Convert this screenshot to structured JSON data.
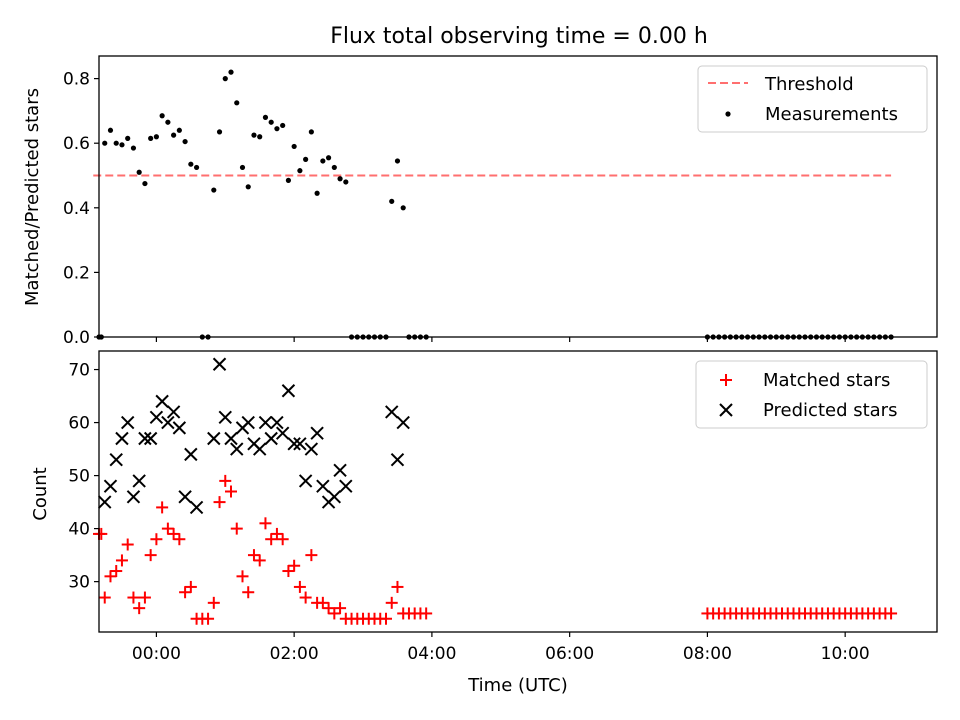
{
  "title": "Flux total observing time = 0.00 h",
  "chart_data": [
    {
      "type": "scatter",
      "ylabel": "Matched/Predicted stars",
      "xlabel": "",
      "xlim": [
        "-00:50",
        "11:20"
      ],
      "ylim": [
        0,
        0.87
      ],
      "yticks": [
        0.0,
        0.2,
        0.4,
        0.6,
        0.8
      ],
      "ytick_labels": [
        "0.0",
        "0.2",
        "0.4",
        "0.6",
        "0.8"
      ],
      "legend_position": "top-right",
      "threshold": {
        "name": "Threshold",
        "y": 0.5,
        "x_start": "-00:55",
        "x_end": "10:40",
        "color": "#ff6f6f",
        "style": "dashed"
      },
      "series": [
        {
          "name": "Measurements",
          "color": "#000000",
          "marker": "dot",
          "points": [
            [
              "-00:50",
              0.0
            ],
            [
              "-00:48",
              0.0
            ],
            [
              "-00:45",
              0.6
            ],
            [
              "-00:40",
              0.64
            ],
            [
              "-00:35",
              0.6
            ],
            [
              "-00:30",
              0.595
            ],
            [
              "-00:25",
              0.615
            ],
            [
              "-00:20",
              0.585
            ],
            [
              "-00:15",
              0.51
            ],
            [
              "-00:10",
              0.475
            ],
            [
              "-00:05",
              0.615
            ],
            [
              "00:00",
              0.62
            ],
            [
              "00:05",
              0.685
            ],
            [
              "00:10",
              0.665
            ],
            [
              "00:15",
              0.625
            ],
            [
              "00:20",
              0.64
            ],
            [
              "00:25",
              0.605
            ],
            [
              "00:30",
              0.535
            ],
            [
              "00:35",
              0.525
            ],
            [
              "00:40",
              0.0
            ],
            [
              "00:45",
              0.0
            ],
            [
              "00:50",
              0.455
            ],
            [
              "00:55",
              0.635
            ],
            [
              "01:00",
              0.8
            ],
            [
              "01:05",
              0.82
            ],
            [
              "01:10",
              0.725
            ],
            [
              "01:15",
              0.525
            ],
            [
              "01:20",
              0.465
            ],
            [
              "01:25",
              0.625
            ],
            [
              "01:30",
              0.62
            ],
            [
              "01:35",
              0.68
            ],
            [
              "01:40",
              0.665
            ],
            [
              "01:45",
              0.645
            ],
            [
              "01:50",
              0.655
            ],
            [
              "01:55",
              0.485
            ],
            [
              "02:00",
              0.59
            ],
            [
              "02:05",
              0.515
            ],
            [
              "02:10",
              0.55
            ],
            [
              "02:15",
              0.635
            ],
            [
              "02:20",
              0.445
            ],
            [
              "02:25",
              0.545
            ],
            [
              "02:30",
              0.555
            ],
            [
              "02:35",
              0.525
            ],
            [
              "02:40",
              0.49
            ],
            [
              "02:45",
              0.48
            ],
            [
              "02:50",
              0.0
            ],
            [
              "02:55",
              0.0
            ],
            [
              "03:00",
              0.0
            ],
            [
              "03:05",
              0.0
            ],
            [
              "03:10",
              0.0
            ],
            [
              "03:15",
              0.0
            ],
            [
              "03:20",
              0.0
            ],
            [
              "03:25",
              0.42
            ],
            [
              "03:30",
              0.545
            ],
            [
              "03:35",
              0.4
            ],
            [
              "03:40",
              0.0
            ],
            [
              "03:45",
              0.0
            ],
            [
              "03:50",
              0.0
            ],
            [
              "03:55",
              0.0
            ],
            [
              "08:00",
              0.0
            ],
            [
              "08:05",
              0.0
            ],
            [
              "08:10",
              0.0
            ],
            [
              "08:15",
              0.0
            ],
            [
              "08:20",
              0.0
            ],
            [
              "08:25",
              0.0
            ],
            [
              "08:30",
              0.0
            ],
            [
              "08:35",
              0.0
            ],
            [
              "08:40",
              0.0
            ],
            [
              "08:45",
              0.0
            ],
            [
              "08:50",
              0.0
            ],
            [
              "08:55",
              0.0
            ],
            [
              "09:00",
              0.0
            ],
            [
              "09:05",
              0.0
            ],
            [
              "09:10",
              0.0
            ],
            [
              "09:15",
              0.0
            ],
            [
              "09:20",
              0.0
            ],
            [
              "09:25",
              0.0
            ],
            [
              "09:30",
              0.0
            ],
            [
              "09:35",
              0.0
            ],
            [
              "09:40",
              0.0
            ],
            [
              "09:45",
              0.0
            ],
            [
              "09:50",
              0.0
            ],
            [
              "09:55",
              0.0
            ],
            [
              "10:00",
              0.0
            ],
            [
              "10:05",
              0.0
            ],
            [
              "10:10",
              0.0
            ],
            [
              "10:15",
              0.0
            ],
            [
              "10:20",
              0.0
            ],
            [
              "10:25",
              0.0
            ],
            [
              "10:30",
              0.0
            ],
            [
              "10:35",
              0.0
            ],
            [
              "10:40",
              0.0
            ]
          ]
        }
      ]
    },
    {
      "type": "scatter",
      "xlabel": "Time (UTC)",
      "ylabel": "Count",
      "xlim": [
        "-00:50",
        "11:20"
      ],
      "ylim": [
        20.5,
        73.5
      ],
      "yticks": [
        30,
        40,
        50,
        60,
        70
      ],
      "ytick_labels": [
        "30",
        "40",
        "50",
        "60",
        "70"
      ],
      "xticks": [
        "00:00",
        "02:00",
        "04:00",
        "06:00",
        "08:00",
        "10:00"
      ],
      "xtick_labels": [
        "00:00",
        "02:00",
        "04:00",
        "06:00",
        "08:00",
        "10:00"
      ],
      "legend_position": "top-right",
      "series": [
        {
          "name": "Matched stars",
          "color": "#ff0000",
          "marker": "plus",
          "points": [
            [
              "-00:50",
              39
            ],
            [
              "-00:48",
              39
            ],
            [
              "-00:45",
              27
            ],
            [
              "-00:40",
              31
            ],
            [
              "-00:35",
              32
            ],
            [
              "-00:30",
              34
            ],
            [
              "-00:25",
              37
            ],
            [
              "-00:20",
              27
            ],
            [
              "-00:15",
              25
            ],
            [
              "-00:10",
              27
            ],
            [
              "-00:05",
              35
            ],
            [
              "00:00",
              38
            ],
            [
              "00:05",
              44
            ],
            [
              "00:10",
              40
            ],
            [
              "00:15",
              39
            ],
            [
              "00:20",
              38
            ],
            [
              "00:25",
              28
            ],
            [
              "00:30",
              29
            ],
            [
              "00:35",
              23
            ],
            [
              "00:40",
              23
            ],
            [
              "00:45",
              23
            ],
            [
              "00:50",
              26
            ],
            [
              "00:55",
              45
            ],
            [
              "01:00",
              49
            ],
            [
              "01:05",
              47
            ],
            [
              "01:10",
              40
            ],
            [
              "01:15",
              31
            ],
            [
              "01:20",
              28
            ],
            [
              "01:25",
              35
            ],
            [
              "01:30",
              34
            ],
            [
              "01:35",
              41
            ],
            [
              "01:40",
              38
            ],
            [
              "01:45",
              39
            ],
            [
              "01:50",
              38
            ],
            [
              "01:55",
              32
            ],
            [
              "02:00",
              33
            ],
            [
              "02:05",
              29
            ],
            [
              "02:10",
              27
            ],
            [
              "02:15",
              35
            ],
            [
              "02:20",
              26
            ],
            [
              "02:25",
              26
            ],
            [
              "02:30",
              25
            ],
            [
              "02:35",
              24
            ],
            [
              "02:40",
              25
            ],
            [
              "02:45",
              23
            ],
            [
              "02:50",
              23
            ],
            [
              "02:55",
              23
            ],
            [
              "03:00",
              23
            ],
            [
              "03:05",
              23
            ],
            [
              "03:10",
              23
            ],
            [
              "03:15",
              23
            ],
            [
              "03:20",
              23
            ],
            [
              "03:25",
              26
            ],
            [
              "03:30",
              29
            ],
            [
              "03:35",
              24
            ],
            [
              "03:40",
              24
            ],
            [
              "03:45",
              24
            ],
            [
              "03:50",
              24
            ],
            [
              "03:55",
              24
            ],
            [
              "08:00",
              24
            ],
            [
              "08:05",
              24
            ],
            [
              "08:10",
              24
            ],
            [
              "08:15",
              24
            ],
            [
              "08:20",
              24
            ],
            [
              "08:25",
              24
            ],
            [
              "08:30",
              24
            ],
            [
              "08:35",
              24
            ],
            [
              "08:40",
              24
            ],
            [
              "08:45",
              24
            ],
            [
              "08:50",
              24
            ],
            [
              "08:55",
              24
            ],
            [
              "09:00",
              24
            ],
            [
              "09:05",
              24
            ],
            [
              "09:10",
              24
            ],
            [
              "09:15",
              24
            ],
            [
              "09:20",
              24
            ],
            [
              "09:25",
              24
            ],
            [
              "09:30",
              24
            ],
            [
              "09:35",
              24
            ],
            [
              "09:40",
              24
            ],
            [
              "09:45",
              24
            ],
            [
              "09:50",
              24
            ],
            [
              "09:55",
              24
            ],
            [
              "10:00",
              24
            ],
            [
              "10:05",
              24
            ],
            [
              "10:10",
              24
            ],
            [
              "10:15",
              24
            ],
            [
              "10:20",
              24
            ],
            [
              "10:25",
              24
            ],
            [
              "10:30",
              24
            ],
            [
              "10:35",
              24
            ],
            [
              "10:40",
              24
            ]
          ]
        },
        {
          "name": "Predicted stars",
          "color": "#000000",
          "marker": "x",
          "points": [
            [
              "-00:45",
              45
            ],
            [
              "-00:40",
              48
            ],
            [
              "-00:35",
              53
            ],
            [
              "-00:30",
              57
            ],
            [
              "-00:25",
              60
            ],
            [
              "-00:20",
              46
            ],
            [
              "-00:15",
              49
            ],
            [
              "-00:10",
              57
            ],
            [
              "-00:05",
              57
            ],
            [
              "00:00",
              61
            ],
            [
              "00:05",
              64
            ],
            [
              "00:10",
              60
            ],
            [
              "00:15",
              62
            ],
            [
              "00:20",
              59
            ],
            [
              "00:25",
              46
            ],
            [
              "00:30",
              54
            ],
            [
              "00:35",
              44
            ],
            [
              "00:50",
              57
            ],
            [
              "00:55",
              71
            ],
            [
              "01:00",
              61
            ],
            [
              "01:05",
              57
            ],
            [
              "01:10",
              55
            ],
            [
              "01:15",
              59
            ],
            [
              "01:20",
              60
            ],
            [
              "01:25",
              56
            ],
            [
              "01:30",
              55
            ],
            [
              "01:35",
              60
            ],
            [
              "01:40",
              57
            ],
            [
              "01:45",
              60
            ],
            [
              "01:50",
              58
            ],
            [
              "01:55",
              66
            ],
            [
              "02:00",
              56
            ],
            [
              "02:05",
              56
            ],
            [
              "02:10",
              49
            ],
            [
              "02:15",
              55
            ],
            [
              "02:20",
              58
            ],
            [
              "02:25",
              48
            ],
            [
              "02:30",
              45
            ],
            [
              "02:35",
              46
            ],
            [
              "02:40",
              51
            ],
            [
              "02:45",
              48
            ],
            [
              "03:25",
              62
            ],
            [
              "03:30",
              53
            ],
            [
              "03:35",
              60
            ]
          ]
        }
      ]
    }
  ]
}
